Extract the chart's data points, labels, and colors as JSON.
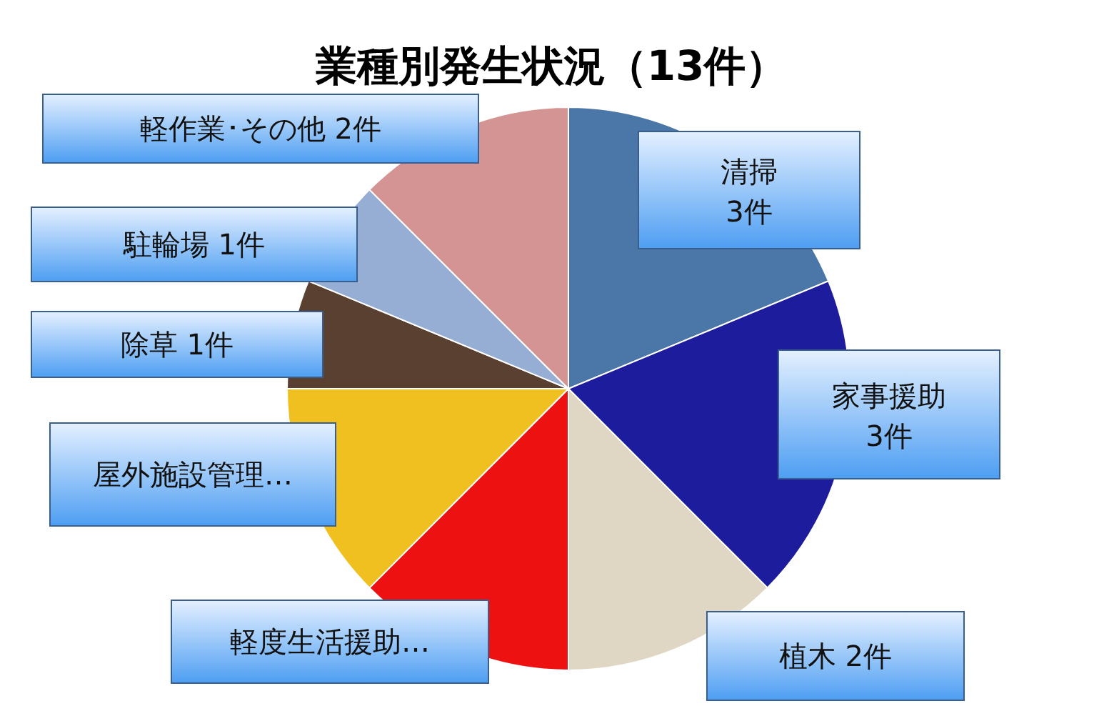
{
  "chart_data": {
    "type": "pie",
    "title": "業種別発生状況（13件）",
    "categories": [
      "清掃",
      "家事援助",
      "植木",
      "軽度生活援助…",
      "屋外施設管理…",
      "除草",
      "駐輪場",
      "軽作業･その他"
    ],
    "values": [
      3,
      3,
      2,
      2,
      2,
      1,
      1,
      2
    ],
    "value_labels": [
      "3件",
      "3件",
      "2件",
      null,
      null,
      "1件",
      "1件",
      "2件"
    ],
    "colors": [
      "#4a76a8",
      "#1c1c9c",
      "#e0d6c4",
      "#ee1111",
      "#f0c020",
      "#5a4030",
      "#97aed4",
      "#d49494"
    ],
    "legend": false
  }
}
